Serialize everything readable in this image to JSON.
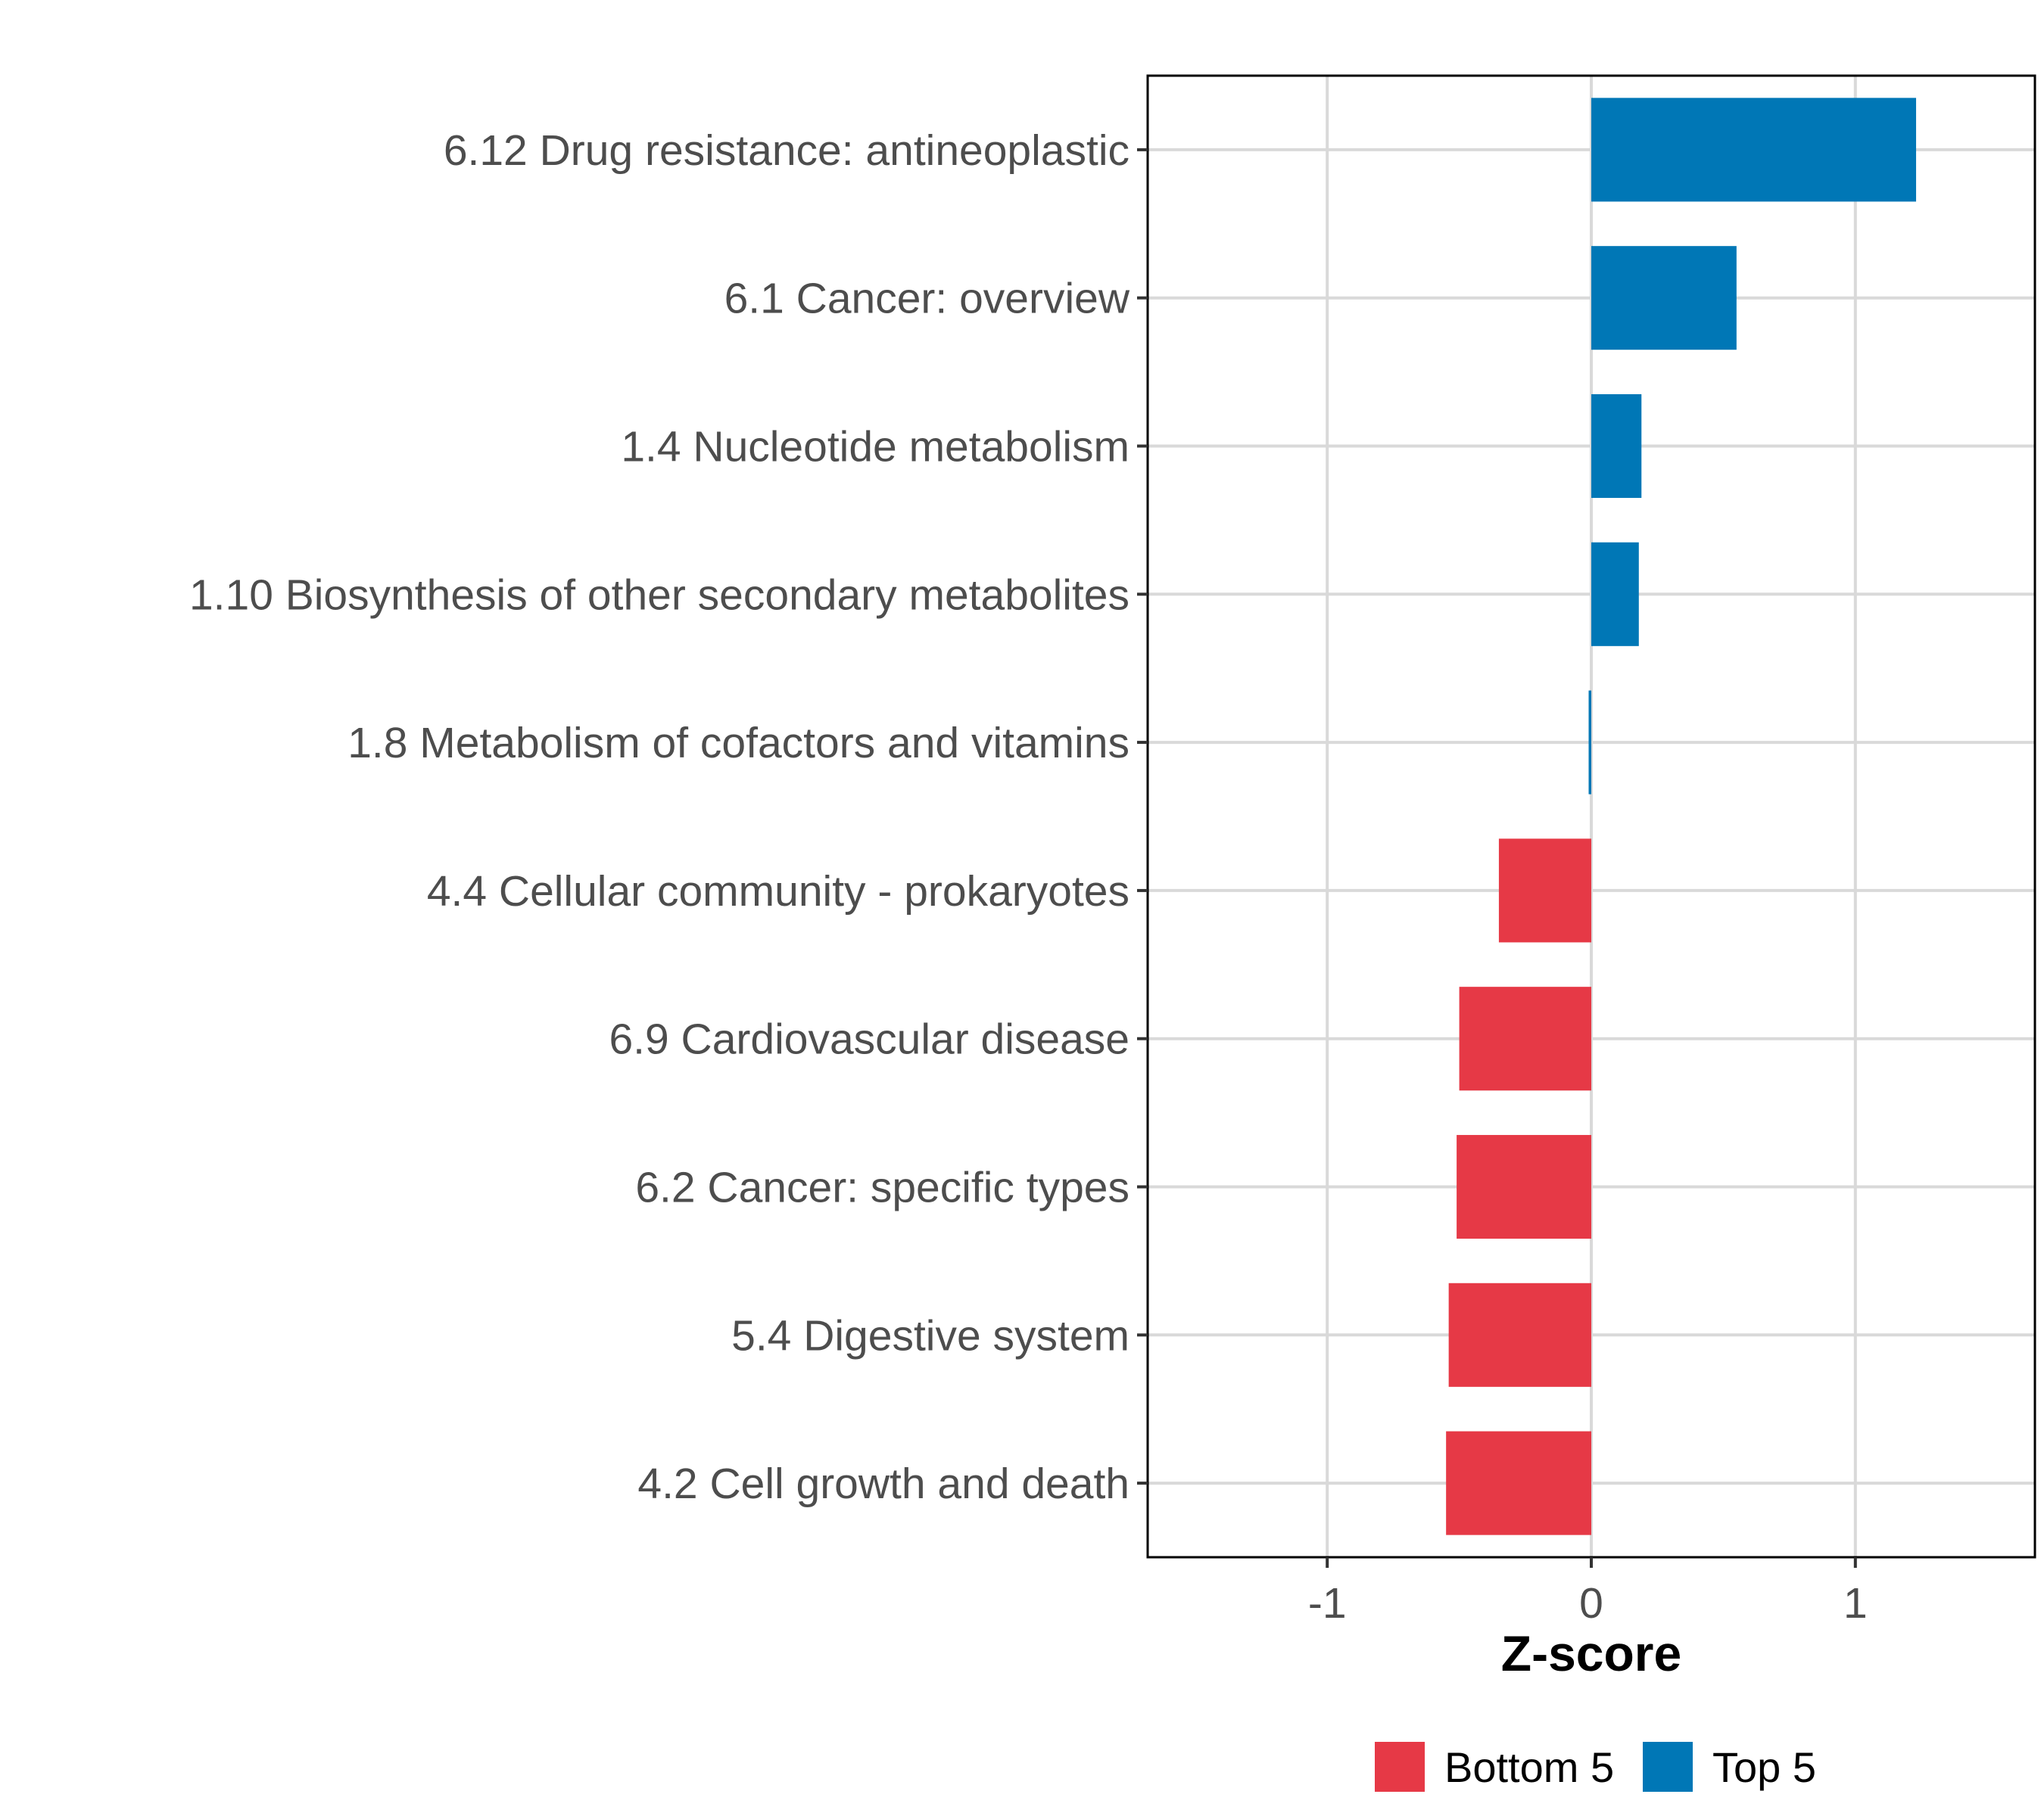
{
  "chart_data": {
    "type": "bar",
    "orientation": "horizontal",
    "title": "",
    "xlabel": "Z-score",
    "ylabel": "",
    "xlim": [
      -1.68,
      1.68
    ],
    "xticks": [
      -1,
      0,
      1
    ],
    "xtick_labels": [
      "-1",
      "0",
      "1"
    ],
    "grid": true,
    "categories": [
      "6.12 Drug resistance: antineoplastic",
      "6.1 Cancer: overview",
      "1.4 Nucleotide metabolism",
      "1.10 Biosynthesis of other secondary metabolites",
      "1.8 Metabolism of cofactors and vitamins",
      "4.4 Cellular community - prokaryotes",
      "6.9 Cardiovascular disease",
      "6.2 Cancer: specific types",
      "5.4 Digestive system",
      "4.2 Cell growth and death"
    ],
    "values": [
      1.23,
      0.55,
      0.19,
      0.18,
      -0.01,
      -0.35,
      -0.5,
      -0.51,
      -0.54,
      -0.55
    ],
    "groups": [
      "Top 5",
      "Top 5",
      "Top 5",
      "Top 5",
      "Top 5",
      "Bottom 5",
      "Bottom 5",
      "Bottom 5",
      "Bottom 5",
      "Bottom 5"
    ],
    "legend": {
      "position": "bottom",
      "entries": [
        {
          "label": "Bottom 5",
          "color": "#e63946"
        },
        {
          "label": "Top 5",
          "color": "#0077b6"
        }
      ]
    }
  }
}
